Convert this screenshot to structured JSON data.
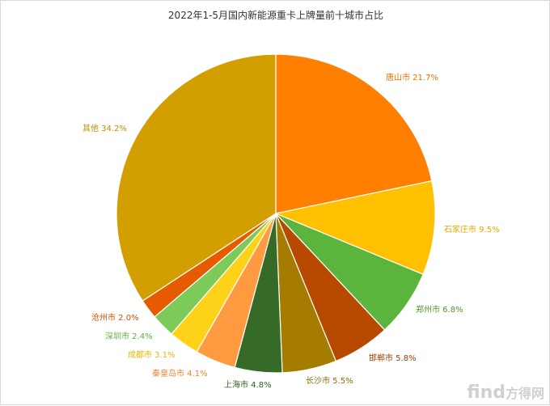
{
  "chart_data": {
    "type": "pie",
    "title": "2022年1-5月国内新能源重卡上牌量前十城市占比",
    "slices": [
      {
        "name": "唐山市",
        "value": 21.7,
        "label": "唐山市 21.7%",
        "color": "#FF7F00",
        "label_color": "#E67300"
      },
      {
        "name": "石家庄市",
        "value": 9.5,
        "label": "石家庄市 9.5%",
        "color": "#FFC000",
        "label_color": "#E6A800"
      },
      {
        "name": "郑州市",
        "value": 6.8,
        "label": "郑州市 6.8%",
        "color": "#5BB53C",
        "label_color": "#4E9A33"
      },
      {
        "name": "邯郸市",
        "value": 5.8,
        "label": "邯郸市 5.8%",
        "color": "#B84A00",
        "label_color": "#A04000"
      },
      {
        "name": "长沙市",
        "value": 5.5,
        "label": "长沙市 5.5%",
        "color": "#A67C00",
        "label_color": "#8F6B00"
      },
      {
        "name": "上海市",
        "value": 4.8,
        "label": "上海市 4.8%",
        "color": "#356B27",
        "label_color": "#2E5E22"
      },
      {
        "name": "秦皇岛市",
        "value": 4.1,
        "label": "秦皇岛市 4.1%",
        "color": "#FF9A40",
        "label_color": "#E6862E"
      },
      {
        "name": "成都市",
        "value": 3.1,
        "label": "成都市 3.1%",
        "color": "#FFD21A",
        "label_color": "#E6B800"
      },
      {
        "name": "深圳市",
        "value": 2.4,
        "label": "深圳市 2.4%",
        "color": "#7CCB5A",
        "label_color": "#5FAF40"
      },
      {
        "name": "沧州市",
        "value": 2.0,
        "label": "沧州市 2.0%",
        "color": "#E65A00",
        "label_color": "#D44F00"
      },
      {
        "name": "其他",
        "value": 34.2,
        "label": "其他 34.2%",
        "color": "#D39E00",
        "label_color": "#C08F00"
      }
    ]
  },
  "watermark": {
    "latin": "find",
    "cn": "方得网"
  }
}
